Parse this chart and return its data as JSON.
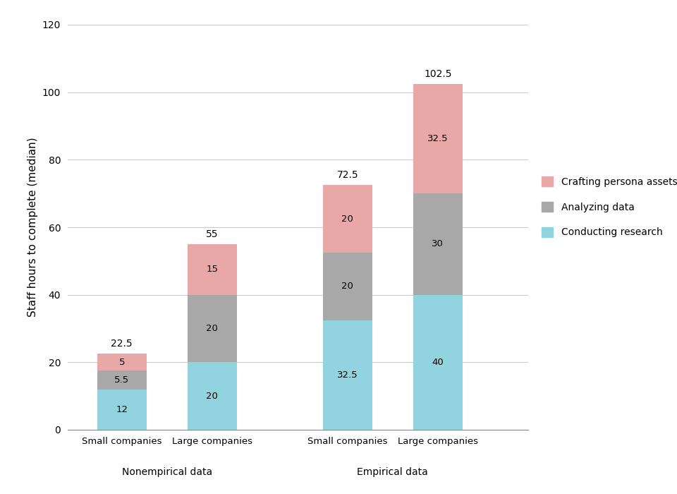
{
  "categories": [
    "Small companies",
    "Large companies",
    "Small companies",
    "Large companies"
  ],
  "group_labels": [
    "Nonempirical data",
    "Empirical data"
  ],
  "conducting_research": [
    12,
    20,
    32.5,
    40
  ],
  "analyzing_data": [
    5.5,
    20,
    20,
    30
  ],
  "crafting_persona": [
    5,
    15,
    20,
    32.5
  ],
  "totals": [
    22.5,
    55,
    72.5,
    102.5
  ],
  "color_conducting": "#92D3E0",
  "color_analyzing": "#A8A8A8",
  "color_crafting": "#E8A8A8",
  "ylabel": "Staff hours to complete (median)",
  "ylim": [
    0,
    120
  ],
  "yticks": [
    0,
    20,
    40,
    60,
    80,
    100,
    120
  ],
  "legend_labels": [
    "Crafting persona assets",
    "Analyzing data",
    "Conducting research"
  ],
  "background_color": "#ffffff",
  "bar_width": 0.55
}
